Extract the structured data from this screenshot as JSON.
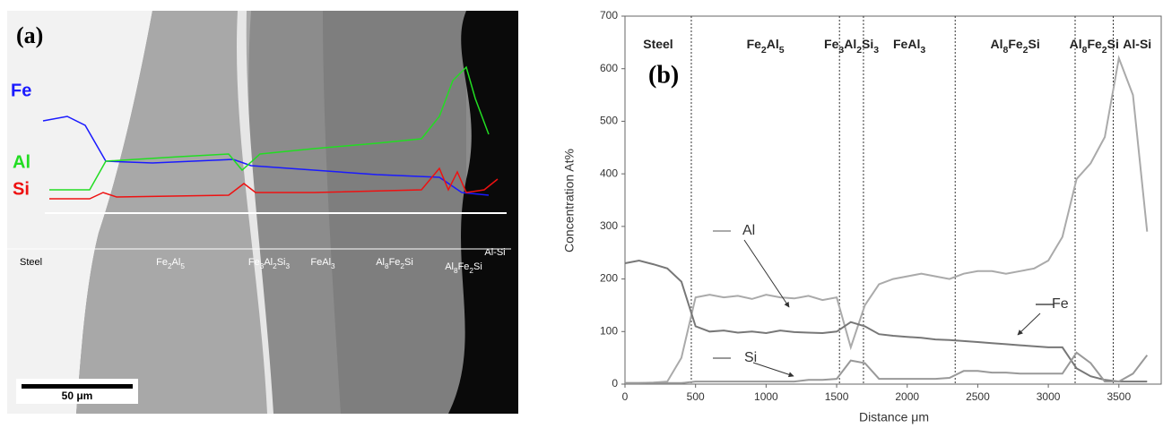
{
  "micrograph": {
    "label": "(a)",
    "elements": [
      "Fe",
      "Al",
      "Si"
    ],
    "phases": [
      "Steel",
      "Fe2Al5",
      "Fe3Al2Si3",
      "FeAl3",
      "Al8Fe2Si",
      "Al8Fe2Si",
      "Al-Si"
    ],
    "scale_bar": "50 μm"
  },
  "chart_data": {
    "type": "line",
    "label": "(b)",
    "x_label": "Distance μm",
    "y_label": "Concentration At%",
    "x": [
      0,
      100,
      200,
      300,
      400,
      500,
      600,
      700,
      800,
      900,
      1000,
      1100,
      1200,
      1300,
      1400,
      1500,
      1600,
      1700,
      1800,
      1900,
      2000,
      2100,
      2200,
      2300,
      2400,
      2500,
      2600,
      2700,
      2800,
      2900,
      3000,
      3100,
      3200,
      3300,
      3400,
      3500,
      3600,
      3700
    ],
    "series": [
      {
        "name": "Al",
        "color": "#aaaaaa",
        "values": [
          2,
          2,
          3,
          5,
          50,
          165,
          170,
          165,
          168,
          162,
          170,
          165,
          163,
          168,
          160,
          165,
          70,
          150,
          190,
          200,
          205,
          210,
          205,
          200,
          210,
          215,
          215,
          210,
          215,
          220,
          235,
          280,
          390,
          420,
          470,
          620,
          550,
          290
        ]
      },
      {
        "name": "Fe",
        "color": "#777777",
        "values": [
          230,
          235,
          228,
          220,
          195,
          110,
          100,
          102,
          98,
          100,
          97,
          102,
          99,
          98,
          97,
          100,
          118,
          110,
          95,
          92,
          90,
          88,
          85,
          84,
          82,
          80,
          78,
          76,
          74,
          72,
          70,
          70,
          30,
          15,
          8,
          5,
          5,
          5
        ]
      },
      {
        "name": "Si",
        "color": "#999999",
        "values": [
          2,
          2,
          2,
          2,
          2,
          5,
          5,
          5,
          5,
          5,
          5,
          5,
          5,
          8,
          8,
          10,
          45,
          40,
          10,
          10,
          10,
          10,
          10,
          12,
          25,
          25,
          22,
          22,
          20,
          20,
          20,
          20,
          60,
          40,
          5,
          5,
          20,
          55
        ]
      }
    ],
    "boundaries": [
      470,
      1520,
      1690,
      2340,
      3190,
      3460
    ],
    "regions": [
      "Steel",
      "Fe2Al5",
      "Fe3Al2Si3",
      "FeAl3",
      "Al8Fe2Si",
      "Al8Fe2Si",
      "Al-Si"
    ],
    "xlim": [
      0,
      3800
    ],
    "xticks": [
      0,
      500,
      1000,
      1500,
      2000,
      2500,
      3000,
      3500
    ],
    "ylim": [
      0,
      700
    ],
    "yticks": [
      0,
      100,
      200,
      300,
      400,
      500,
      600,
      700
    ]
  }
}
